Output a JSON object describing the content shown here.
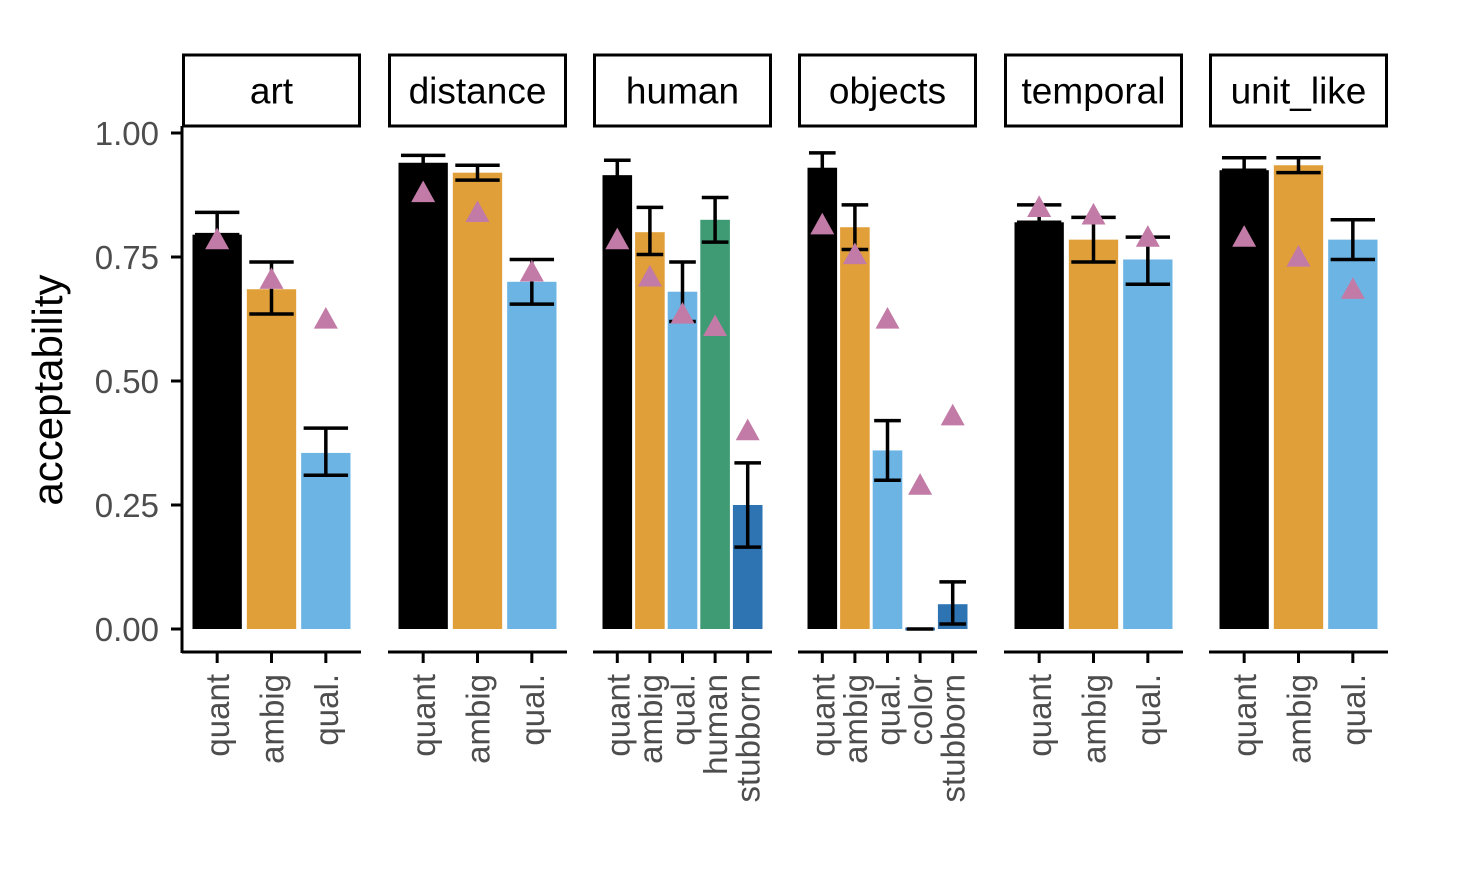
{
  "chart_data": {
    "type": "bar",
    "ylabel": "acceptability",
    "xlabel": "",
    "ylim": [
      0,
      1.05
    ],
    "yticks": [
      "0.00",
      "0.25",
      "0.50",
      "0.75",
      "1.00"
    ],
    "legend": "none",
    "grid": false,
    "colors": {
      "quant": "#000000",
      "ambig": "#E09F38",
      "qual.": "#6CB4E4",
      "human": "#3F9B73",
      "color": "#2E74B3",
      "stubborn": "#2E74B3",
      "triangle": "#C27BA6",
      "errorbar": "#000000"
    },
    "panels": [
      {
        "title": "art",
        "categories": [
          "quant",
          "ambig",
          "qual."
        ],
        "values": [
          0.795,
          0.685,
          0.355
        ],
        "err_low": [
          0.795,
          0.635,
          0.31
        ],
        "err_high": [
          0.84,
          0.74,
          0.405
        ],
        "triangles": [
          0.785,
          0.705,
          0.625
        ]
      },
      {
        "title": "distance",
        "categories": [
          "quant",
          "ambig",
          "qual."
        ],
        "values": [
          0.94,
          0.92,
          0.7
        ],
        "err_low": [
          0.93,
          0.905,
          0.655
        ],
        "err_high": [
          0.955,
          0.935,
          0.745
        ],
        "triangles": [
          0.88,
          0.84,
          0.72
        ]
      },
      {
        "title": "human",
        "categories": [
          "quant",
          "ambig",
          "qual.",
          "human",
          "stubborn"
        ],
        "values": [
          0.915,
          0.8,
          0.68,
          0.825,
          0.25
        ],
        "err_low": [
          0.885,
          0.755,
          0.62,
          0.78,
          0.165
        ],
        "err_high": [
          0.945,
          0.85,
          0.74,
          0.87,
          0.335
        ],
        "triangles": [
          0.785,
          0.71,
          0.635,
          0.61,
          0.4
        ]
      },
      {
        "title": "objects",
        "categories": [
          "quant",
          "ambig",
          "qual.",
          "color",
          "stubborn"
        ],
        "values": [
          0.93,
          0.81,
          0.36,
          0.0,
          0.05
        ],
        "err_low": [
          0.905,
          0.765,
          0.3,
          0.0,
          0.01
        ],
        "err_high": [
          0.96,
          0.855,
          0.42,
          0.0,
          0.095
        ],
        "triangles": [
          0.815,
          0.755,
          0.625,
          0.29,
          0.43
        ]
      },
      {
        "title": "temporal",
        "categories": [
          "quant",
          "ambig",
          "qual."
        ],
        "values": [
          0.82,
          0.785,
          0.745
        ],
        "err_low": [
          0.82,
          0.74,
          0.695
        ],
        "err_high": [
          0.855,
          0.83,
          0.79
        ],
        "triangles": [
          0.85,
          0.835,
          0.79
        ]
      },
      {
        "title": "unit_like",
        "categories": [
          "quant",
          "ambig",
          "qual."
        ],
        "values": [
          0.925,
          0.935,
          0.785
        ],
        "err_low": [
          0.925,
          0.92,
          0.745
        ],
        "err_high": [
          0.95,
          0.95,
          0.825
        ],
        "triangles": [
          0.79,
          0.75,
          0.685
        ]
      }
    ]
  }
}
